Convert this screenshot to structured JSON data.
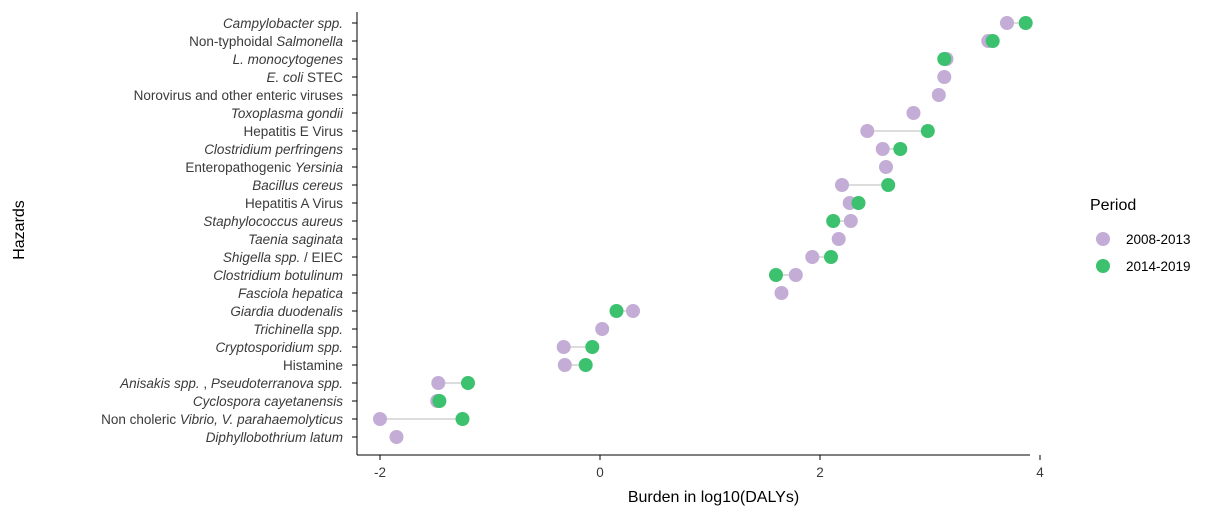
{
  "chart_data": {
    "type": "dumbbell",
    "xlabel": "Burden in log10(DALYs)",
    "ylabel": "Hazards",
    "xlim": [
      -2.2,
      4.2
    ],
    "x_ticks": [
      -2,
      0,
      2,
      4
    ],
    "legend": {
      "title": "Period",
      "placement": "right",
      "entries": [
        {
          "label": "2008-2013",
          "color": "#c3acd5"
        },
        {
          "label": "2014-2019",
          "color": "#3cc16e"
        }
      ]
    },
    "categories": [
      {
        "parts": [
          {
            "t": "Campylobacter spp.",
            "i": true
          }
        ]
      },
      {
        "parts": [
          {
            "t": "Non-typhoidal ",
            "i": false
          },
          {
            "t": "Salmonella",
            "i": true
          }
        ]
      },
      {
        "parts": [
          {
            "t": "L. monocytogenes",
            "i": true
          }
        ]
      },
      {
        "parts": [
          {
            "t": "E. coli",
            "i": true
          },
          {
            "t": " STEC",
            "i": false
          }
        ]
      },
      {
        "parts": [
          {
            "t": "Norovirus and other enteric viruses",
            "i": false
          }
        ]
      },
      {
        "parts": [
          {
            "t": "Toxoplasma gondii",
            "i": true
          }
        ]
      },
      {
        "parts": [
          {
            "t": "Hepatitis E Virus",
            "i": false
          }
        ]
      },
      {
        "parts": [
          {
            "t": "Clostridium perfringens",
            "i": true
          }
        ]
      },
      {
        "parts": [
          {
            "t": "Enteropathogenic ",
            "i": false
          },
          {
            "t": "Yersinia",
            "i": true
          }
        ]
      },
      {
        "parts": [
          {
            "t": "Bacillus cereus",
            "i": true
          }
        ]
      },
      {
        "parts": [
          {
            "t": "Hepatitis A Virus",
            "i": false
          }
        ]
      },
      {
        "parts": [
          {
            "t": "Staphylococcus aureus",
            "i": true
          }
        ]
      },
      {
        "parts": [
          {
            "t": "Taenia saginata",
            "i": true
          }
        ]
      },
      {
        "parts": [
          {
            "t": "Shigella spp.",
            "i": true
          },
          {
            "t": " / EIEC",
            "i": false
          }
        ]
      },
      {
        "parts": [
          {
            "t": "Clostridium botulinum",
            "i": true
          }
        ]
      },
      {
        "parts": [
          {
            "t": "Fasciola hepatica",
            "i": true
          }
        ]
      },
      {
        "parts": [
          {
            "t": "Giardia duodenalis",
            "i": true
          }
        ]
      },
      {
        "parts": [
          {
            "t": "Trichinella spp.",
            "i": true
          }
        ]
      },
      {
        "parts": [
          {
            "t": "Cryptosporidium spp.",
            "i": true
          }
        ]
      },
      {
        "parts": [
          {
            "t": "Histamine",
            "i": false
          }
        ]
      },
      {
        "parts": [
          {
            "t": "Anisakis spp.",
            "i": true
          },
          {
            "t": " , ",
            "i": false
          },
          {
            "t": "Pseudoterranova spp.",
            "i": true
          }
        ]
      },
      {
        "parts": [
          {
            "t": "Cyclospora cayetanensis",
            "i": true
          }
        ]
      },
      {
        "parts": [
          {
            "t": "Non choleric ",
            "i": false
          },
          {
            "t": "Vibrio, V. parahaemolyticus",
            "i": true
          }
        ]
      },
      {
        "parts": [
          {
            "t": "Diphyllobothrium latum",
            "i": true
          }
        ]
      }
    ],
    "series": [
      {
        "name": "2008-2013",
        "color": "#c3acd5",
        "values": [
          3.7,
          3.53,
          3.15,
          3.13,
          3.08,
          2.85,
          2.43,
          2.57,
          2.6,
          2.2,
          2.27,
          2.28,
          2.17,
          1.93,
          1.78,
          1.65,
          0.3,
          0.02,
          -0.33,
          -0.32,
          -1.47,
          -1.48,
          -2.0,
          -1.85
        ]
      },
      {
        "name": "2014-2019",
        "color": "#3cc16e",
        "values": [
          3.87,
          3.57,
          3.13,
          null,
          null,
          null,
          2.98,
          2.73,
          null,
          2.62,
          2.35,
          2.12,
          null,
          2.1,
          1.6,
          null,
          0.15,
          null,
          -0.07,
          -0.13,
          -1.2,
          -1.46,
          -1.25,
          null
        ]
      }
    ]
  }
}
